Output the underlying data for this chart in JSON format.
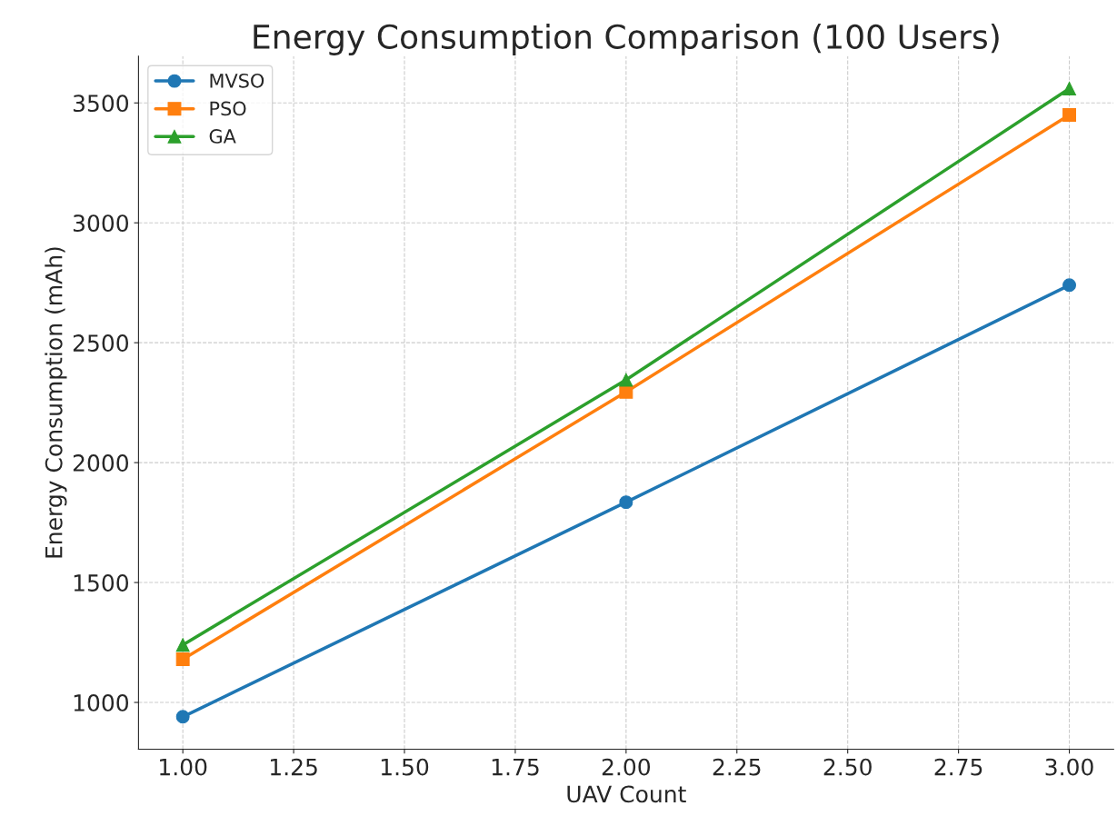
{
  "chart_data": {
    "type": "line",
    "title": "Energy Consumption Comparison (100 Users)",
    "xlabel": "UAV Count",
    "ylabel": "Energy Consumption (mAh)",
    "x": [
      1,
      2,
      3
    ],
    "series": [
      {
        "name": "MVSO",
        "color": "#1f77b4",
        "marker": "circle",
        "values": [
          940,
          1835,
          2740
        ]
      },
      {
        "name": "PSO",
        "color": "#ff7f0e",
        "marker": "square",
        "values": [
          1180,
          2295,
          3450
        ]
      },
      {
        "name": "GA",
        "color": "#2ca02c",
        "marker": "triangle",
        "values": [
          1240,
          2345,
          3560
        ]
      }
    ],
    "xlim": [
      0.9,
      3.1
    ],
    "xticks": [
      {
        "value": 1,
        "label": "1.00"
      },
      {
        "value": 1.25,
        "label": "1.25"
      },
      {
        "value": 1.5,
        "label": "1.50"
      },
      {
        "value": 1.75,
        "label": "1.75"
      },
      {
        "value": 2,
        "label": "2.00"
      },
      {
        "value": 2.25,
        "label": "2.25"
      },
      {
        "value": 2.5,
        "label": "2.50"
      },
      {
        "value": 2.75,
        "label": "2.75"
      },
      {
        "value": 3,
        "label": "3.00"
      }
    ],
    "ylim": [
      805,
      3695
    ],
    "yticks": [
      1000,
      1500,
      2000,
      2500,
      3000,
      3500
    ],
    "grid": true,
    "legend": "top left",
    "line_style": "solid"
  }
}
